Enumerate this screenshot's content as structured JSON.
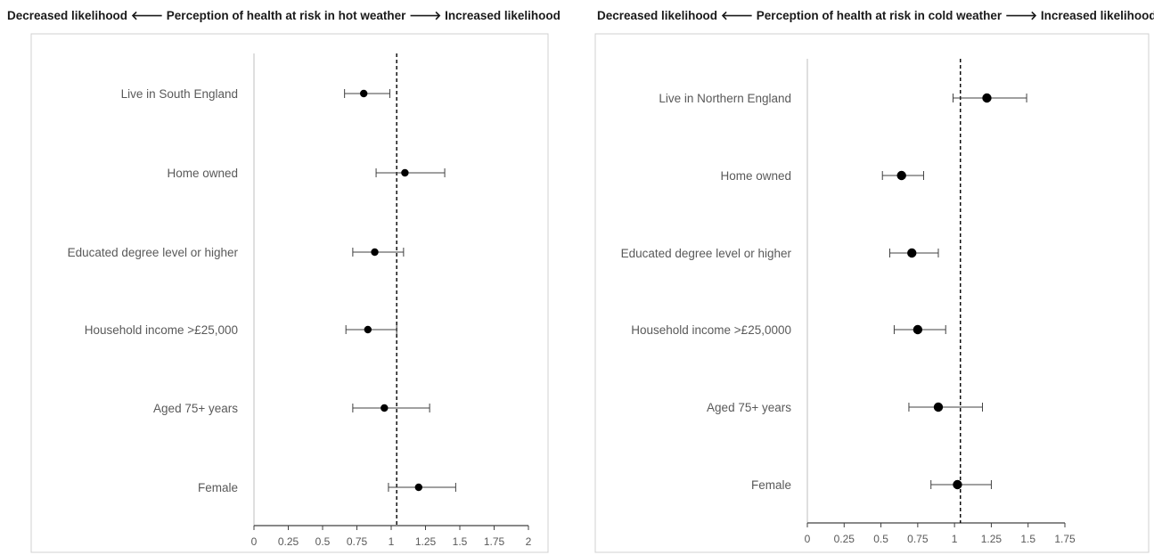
{
  "chart_data": [
    {
      "type": "scatter",
      "title": "Decreased likelihood 🡐 Perception of health at risk in hot weather 🡒 Increased likelihood",
      "title_parts": {
        "left": "Decreased likelihood",
        "middle": "Perception of health at risk in hot weather",
        "right": "Increased likelihood"
      },
      "categories": [
        "Live in South England",
        "Home owned",
        "Educated degree level or higher",
        "Household income >£25,000",
        "Aged 75+ years",
        "Female"
      ],
      "estimate": [
        0.8,
        1.1,
        0.88,
        0.83,
        0.95,
        1.2
      ],
      "ci_low": [
        0.66,
        0.89,
        0.72,
        0.67,
        0.72,
        0.98
      ],
      "ci_high": [
        0.99,
        1.39,
        1.09,
        1.04,
        1.28,
        1.47
      ],
      "reference_line": 1.04,
      "xlim": [
        0,
        2
      ],
      "xticks": [
        "0",
        "0.25",
        "0.5",
        "0.75",
        "1",
        "1.25",
        "1.5",
        "1.75",
        "2"
      ],
      "grid": false
    },
    {
      "type": "scatter",
      "title": "Decreased likelihood 🡐 Perception of health at risk in cold weather 🡒 Increased likelihood",
      "title_parts": {
        "left": "Decreased likelihood",
        "middle": "Perception of health at risk in cold weather",
        "right": "Increased likelihood"
      },
      "categories": [
        "Live in Northern England",
        "Home owned",
        "Educated degree level or higher",
        "Household income >£25,0000",
        "Aged 75+ years",
        "Female"
      ],
      "estimate": [
        1.22,
        0.64,
        0.71,
        0.75,
        0.89,
        1.02
      ],
      "ci_low": [
        0.99,
        0.51,
        0.56,
        0.59,
        0.69,
        0.84
      ],
      "ci_high": [
        1.49,
        0.79,
        0.89,
        0.94,
        1.19,
        1.25
      ],
      "reference_line": 1.04,
      "xlim": [
        0,
        1.75
      ],
      "xticks": [
        "0",
        "0.25",
        "0.5",
        "0.75",
        "1",
        "1.25",
        "1.5",
        "1.75"
      ],
      "grid": false
    }
  ],
  "arrows": {
    "left": "🡐",
    "right": "🡒"
  }
}
